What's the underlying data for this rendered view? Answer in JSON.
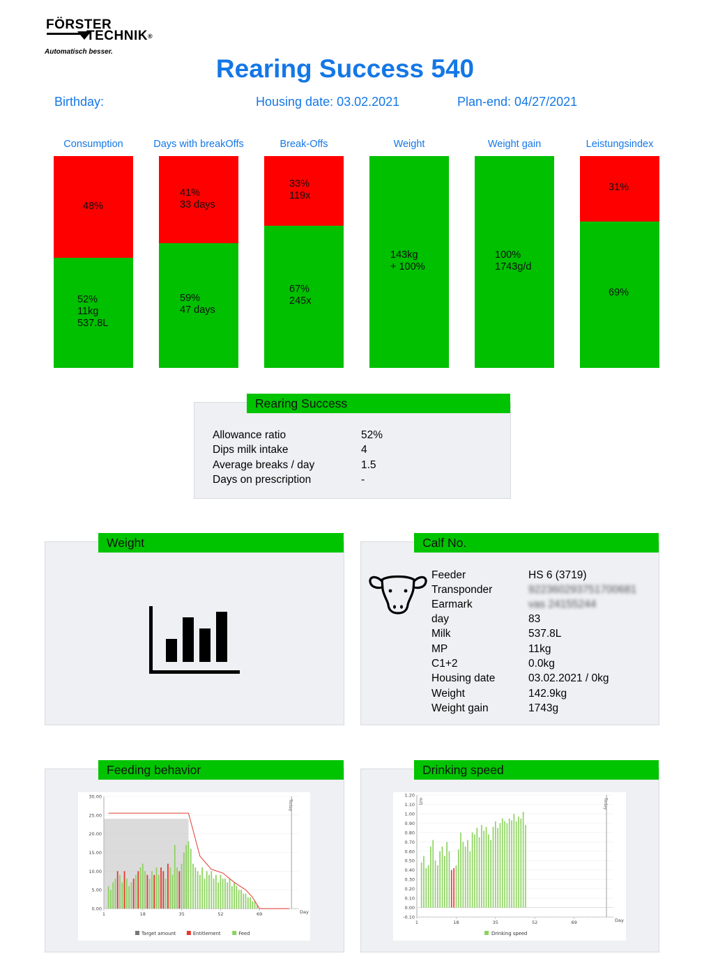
{
  "logo": {
    "line1": "FÖRSTER",
    "line2": "TECHNIK",
    "reg": "®",
    "tagline": "Automatisch besser."
  },
  "title": "Rearing Success 540",
  "meta": {
    "birthday": "Birthday:",
    "housing": "Housing date: 03.02.2021",
    "planend": "Plan-end: 04/27/2021"
  },
  "metrics": [
    {
      "label": "Consumption",
      "red_fraction": 0.48,
      "red_text": "48%",
      "green_text": "52%\n11kg\n537.8L"
    },
    {
      "label": "Days with breakOffs",
      "red_fraction": 0.41,
      "red_text": "41%\n33 days",
      "green_text": "59%\n47 days"
    },
    {
      "label": "Break-Offs",
      "red_fraction": 0.33,
      "red_text": "33%\n119x",
      "green_text": "67%\n245x"
    },
    {
      "label": "Weight",
      "red_fraction": 0,
      "red_text": "",
      "green_text": "143kg\n+ 100%"
    },
    {
      "label": "Weight gain",
      "red_fraction": 0,
      "red_text": "",
      "green_text": "100%\n1743g/d"
    },
    {
      "label": "Leistungsindex",
      "red_fraction": 0.31,
      "red_text": "31%",
      "green_text": "69%"
    }
  ],
  "rearing_success": {
    "header": "Rearing Success",
    "rows": [
      {
        "label": "Allowance ratio",
        "value": "52%"
      },
      {
        "label": "Dips milk intake",
        "value": "4"
      },
      {
        "label": "Average breaks / day",
        "value": "1.5"
      },
      {
        "label": "Days on prescription",
        "value": "-"
      }
    ]
  },
  "weight_panel": {
    "header": "Weight",
    "icon": "bar-chart-icon"
  },
  "calf_panel": {
    "header": "Calf No.",
    "icon": "cow-head-icon",
    "rows": [
      {
        "label": "Feeder",
        "value": "HS 6 (3719)"
      },
      {
        "label": "Transponder",
        "value": "922360293751700681"
      },
      {
        "label": "Earmark",
        "value": "vas 24155244"
      },
      {
        "label": "day",
        "value": "83"
      },
      {
        "label": "Milk",
        "value": "537.8L"
      },
      {
        "label": "MP",
        "value": "11kg"
      },
      {
        "label": "C1+2",
        "value": "0.0kg"
      },
      {
        "label": "Housing date",
        "value": "03.02.2021 / 0kg"
      },
      {
        "label": "Weight",
        "value": "142.9kg"
      },
      {
        "label": "Weight gain",
        "value": "1743g"
      }
    ]
  },
  "feeding_panel": {
    "header": "Feeding behavior"
  },
  "drinking_panel": {
    "header": "Drinking speed"
  },
  "chart_data": [
    {
      "type": "bar",
      "name": "feeding",
      "yticks": [
        "0.00",
        "5.00",
        "10.00",
        "15.00",
        "20.00",
        "25.00",
        "30.00"
      ],
      "ylim": [
        0,
        30
      ],
      "xticks": [
        "1",
        "18",
        "35",
        "52",
        "69"
      ],
      "xlim": [
        1,
        86
      ],
      "xlabel": "Day",
      "marker_label": "Today",
      "marker_day": 83,
      "legend": [
        "Target amount",
        "Entitlement",
        "Feed"
      ],
      "colors": {
        "target": "#bdbdbd",
        "entitlement": "#e43a2f",
        "feed": "#8dd35f"
      },
      "target_area": {
        "from_day": 1,
        "to_day": 38,
        "value": 24
      },
      "entitlement_line": [
        [
          3,
          25.5
        ],
        [
          38,
          25.5
        ],
        [
          43,
          14
        ],
        [
          48,
          10.5
        ],
        [
          53,
          9.5
        ],
        [
          58,
          7
        ],
        [
          63,
          5
        ],
        [
          66,
          3
        ],
        [
          69,
          0
        ],
        [
          82,
          0
        ]
      ],
      "feed_bars": [
        [
          3,
          6,
          "f"
        ],
        [
          4,
          5,
          "f"
        ],
        [
          5,
          7,
          "f"
        ],
        [
          6,
          8,
          "f"
        ],
        [
          7,
          10,
          "e"
        ],
        [
          8,
          9,
          "f"
        ],
        [
          9,
          7,
          "f"
        ],
        [
          10,
          10,
          "e"
        ],
        [
          11,
          8,
          "f"
        ],
        [
          12,
          6,
          "f"
        ],
        [
          13,
          7,
          "f"
        ],
        [
          14,
          8,
          "e"
        ],
        [
          15,
          9,
          "f"
        ],
        [
          16,
          10,
          "e"
        ],
        [
          17,
          11,
          "f"
        ],
        [
          18,
          12,
          "f"
        ],
        [
          19,
          10,
          "f"
        ],
        [
          20,
          9,
          "e"
        ],
        [
          21,
          8,
          "f"
        ],
        [
          22,
          10,
          "f"
        ],
        [
          23,
          9,
          "e"
        ],
        [
          24,
          11,
          "f"
        ],
        [
          25,
          9,
          "f"
        ],
        [
          26,
          11,
          "e"
        ],
        [
          27,
          10,
          "e"
        ],
        [
          28,
          8,
          "f"
        ],
        [
          29,
          12,
          "e"
        ],
        [
          30,
          11,
          "f"
        ],
        [
          31,
          9,
          "f"
        ],
        [
          32,
          17,
          "f"
        ],
        [
          33,
          11,
          "f"
        ],
        [
          34,
          10,
          "e"
        ],
        [
          35,
          12,
          "f"
        ],
        [
          36,
          15,
          "f"
        ],
        [
          37,
          17,
          "f"
        ],
        [
          38,
          18,
          "f"
        ],
        [
          39,
          16,
          "f"
        ],
        [
          40,
          12,
          "f"
        ],
        [
          41,
          11,
          "f"
        ],
        [
          42,
          10,
          "f"
        ],
        [
          43,
          9,
          "f"
        ],
        [
          44,
          11,
          "f"
        ],
        [
          45,
          8,
          "f"
        ],
        [
          46,
          10,
          "f"
        ],
        [
          47,
          9,
          "f"
        ],
        [
          48,
          10,
          "f"
        ],
        [
          49,
          8,
          "f"
        ],
        [
          50,
          9,
          "f"
        ],
        [
          51,
          7,
          "f"
        ],
        [
          52,
          9,
          "f"
        ],
        [
          53,
          8,
          "f"
        ],
        [
          54,
          8,
          "f"
        ],
        [
          55,
          7,
          "f"
        ],
        [
          56,
          8,
          "f"
        ],
        [
          57,
          6,
          "f"
        ],
        [
          58,
          7,
          "f"
        ],
        [
          59,
          6,
          "f"
        ],
        [
          60,
          5,
          "f"
        ],
        [
          61,
          5,
          "f"
        ],
        [
          62,
          4,
          "f"
        ],
        [
          63,
          4,
          "f"
        ],
        [
          64,
          3,
          "f"
        ],
        [
          65,
          3,
          "f"
        ],
        [
          66,
          2,
          "f"
        ],
        [
          67,
          2,
          "f"
        ],
        [
          68,
          1,
          "f"
        ]
      ]
    },
    {
      "type": "bar",
      "name": "drinking",
      "yticks": [
        "-0.10",
        "0.00",
        "0.10",
        "0.20",
        "0.30",
        "0.40",
        "0.50",
        "0.60",
        "0.70",
        "0.80",
        "0.90",
        "1.00",
        "1.10",
        "1.20"
      ],
      "ylim": [
        -0.1,
        1.2
      ],
      "ylabel": "l/m",
      "xticks": [
        "1",
        "18",
        "35",
        "52",
        "69"
      ],
      "xlim": [
        1,
        86
      ],
      "xlabel": "Day",
      "marker_label": "Today",
      "marker_day": 83,
      "legend": [
        "Drinking speed"
      ],
      "colors": {
        "speed": "#8dd35f",
        "low": "#e43a2f"
      },
      "bars": [
        [
          3,
          0.48,
          "f"
        ],
        [
          4,
          0.55,
          "f"
        ],
        [
          5,
          0.42,
          "f"
        ],
        [
          6,
          0.45,
          "f"
        ],
        [
          7,
          0.65,
          "f"
        ],
        [
          8,
          0.72,
          "f"
        ],
        [
          9,
          0.5,
          "f"
        ],
        [
          10,
          0.45,
          "f"
        ],
        [
          11,
          0.6,
          "f"
        ],
        [
          12,
          0.65,
          "f"
        ],
        [
          13,
          0.55,
          "f"
        ],
        [
          14,
          0.7,
          "f"
        ],
        [
          15,
          0.6,
          "f"
        ],
        [
          16,
          0.4,
          "e"
        ],
        [
          17,
          0.42,
          "e"
        ],
        [
          18,
          0.45,
          "f"
        ],
        [
          19,
          0.62,
          "f"
        ],
        [
          20,
          0.8,
          "f"
        ],
        [
          21,
          0.7,
          "f"
        ],
        [
          22,
          0.65,
          "f"
        ],
        [
          23,
          0.72,
          "f"
        ],
        [
          24,
          0.6,
          "f"
        ],
        [
          25,
          0.8,
          "f"
        ],
        [
          26,
          0.78,
          "f"
        ],
        [
          27,
          0.85,
          "f"
        ],
        [
          28,
          0.75,
          "f"
        ],
        [
          29,
          0.88,
          "f"
        ],
        [
          30,
          0.82,
          "f"
        ],
        [
          31,
          0.86,
          "f"
        ],
        [
          32,
          0.78,
          "f"
        ],
        [
          33,
          0.72,
          "f"
        ],
        [
          34,
          0.86,
          "f"
        ],
        [
          35,
          0.92,
          "f"
        ],
        [
          36,
          0.85,
          "f"
        ],
        [
          37,
          0.9,
          "f"
        ],
        [
          38,
          0.95,
          "f"
        ],
        [
          39,
          0.92,
          "f"
        ],
        [
          40,
          0.9,
          "f"
        ],
        [
          41,
          0.95,
          "f"
        ],
        [
          42,
          0.93,
          "f"
        ],
        [
          43,
          1.0,
          "f"
        ],
        [
          44,
          0.92,
          "f"
        ],
        [
          45,
          0.97,
          "f"
        ],
        [
          46,
          0.95,
          "f"
        ],
        [
          47,
          1.02,
          "f"
        ],
        [
          48,
          0.88,
          "f"
        ]
      ]
    }
  ]
}
